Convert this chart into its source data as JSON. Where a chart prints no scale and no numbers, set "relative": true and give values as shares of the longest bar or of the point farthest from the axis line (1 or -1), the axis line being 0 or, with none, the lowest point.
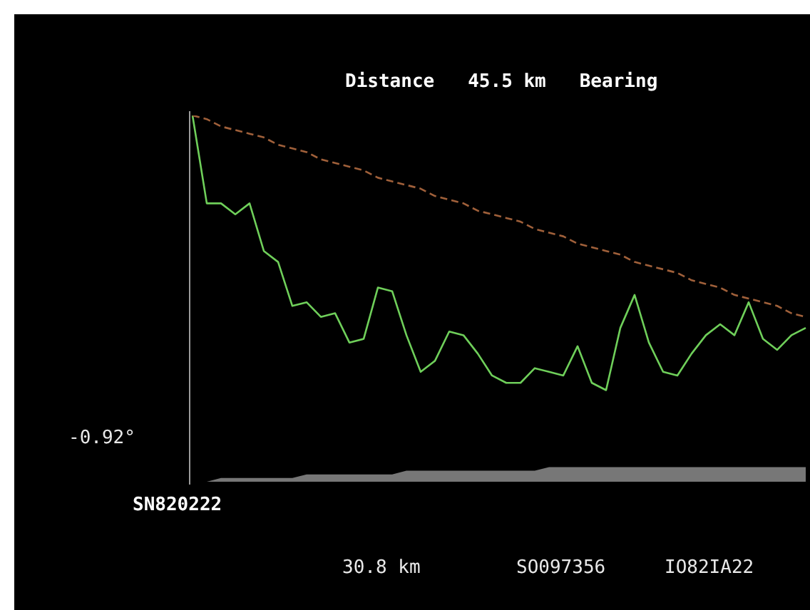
{
  "chart_data": {
    "type": "line",
    "title": "Distance   45.5 km   Bearing",
    "relative": true,
    "legend": false,
    "annotations": [
      "-0.92°",
      "SN820222",
      "30.8 km",
      "SO097356",
      "IO82IA22"
    ],
    "categories": [
      null,
      null,
      null,
      null,
      null,
      null,
      null,
      null,
      null,
      null,
      null,
      null,
      null,
      null,
      null,
      null,
      null,
      null,
      null,
      null,
      null,
      null,
      null,
      null,
      null,
      null,
      null,
      null,
      null,
      null,
      null,
      null,
      null,
      null,
      null,
      null,
      null,
      null,
      null,
      null,
      null,
      null,
      null,
      null
    ],
    "series": [
      {
        "type": "area",
        "color": "#777777",
        "values": [
          0.0,
          0.0,
          0.01,
          0.01,
          0.01,
          0.01,
          0.01,
          0.01,
          0.02,
          0.02,
          0.02,
          0.02,
          0.02,
          0.02,
          0.02,
          0.03,
          0.03,
          0.03,
          0.03,
          0.03,
          0.03,
          0.03,
          0.03,
          0.03,
          0.03,
          0.04,
          0.04,
          0.04,
          0.04,
          0.04,
          0.04,
          0.04,
          0.04,
          0.04,
          0.04,
          0.04,
          0.04,
          0.04,
          0.04,
          0.04,
          0.04,
          0.04,
          0.04,
          0.04
        ]
      },
      {
        "color": "#a0603a",
        "line_style": "dashed",
        "values": [
          1.0,
          0.99,
          0.97,
          0.96,
          0.95,
          0.94,
          0.92,
          0.91,
          0.9,
          0.88,
          0.87,
          0.86,
          0.85,
          0.83,
          0.82,
          0.81,
          0.8,
          0.78,
          0.77,
          0.76,
          0.74,
          0.73,
          0.72,
          0.71,
          0.69,
          0.68,
          0.67,
          0.65,
          0.64,
          0.63,
          0.62,
          0.6,
          0.59,
          0.58,
          0.57,
          0.55,
          0.54,
          0.53,
          0.51,
          0.5,
          0.49,
          0.48,
          0.46,
          0.45
        ]
      },
      {
        "color": "#6fcf5a",
        "values": [
          1.0,
          0.76,
          0.76,
          0.73,
          0.76,
          0.63,
          0.6,
          0.48,
          0.49,
          0.45,
          0.46,
          0.38,
          0.39,
          0.53,
          0.52,
          0.4,
          0.3,
          0.33,
          0.41,
          0.4,
          0.35,
          0.29,
          0.27,
          0.27,
          0.31,
          0.3,
          0.29,
          0.37,
          0.27,
          0.25,
          0.42,
          0.51,
          0.38,
          0.3,
          0.29,
          0.35,
          0.4,
          0.43,
          0.4,
          0.49,
          0.39,
          0.36,
          0.4,
          0.42
        ]
      }
    ]
  }
}
